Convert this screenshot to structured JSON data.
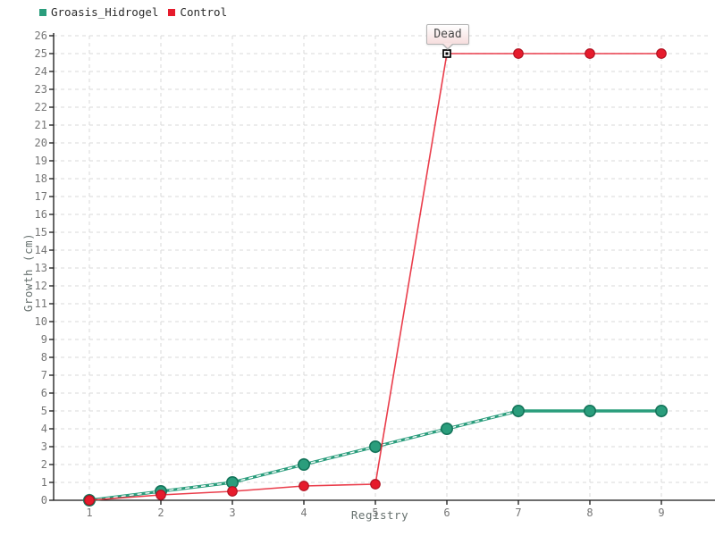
{
  "chart_data": {
    "type": "line",
    "x": [
      1,
      2,
      3,
      4,
      5,
      6,
      7,
      8,
      9
    ],
    "series": [
      {
        "name": "Groasis_Hidrogel",
        "color": "#2a9d7c",
        "marker_border": "#14745a",
        "values": [
          0,
          0.5,
          1,
          2,
          3,
          4,
          5,
          5,
          5
        ],
        "line_style": "thick-with-white-dash-overlay-until-x7"
      },
      {
        "name": "Control",
        "color": "#e61b2c",
        "marker_border": "#ad1120",
        "values": [
          0,
          0.3,
          0.5,
          0.8,
          0.9,
          25,
          25,
          25,
          25
        ],
        "line_style": "thin-solid"
      }
    ],
    "annotation": {
      "label": "Dead",
      "series": "Control",
      "x": 6,
      "y": 25,
      "marker": "white-square-black-border-black-dot"
    },
    "title": "",
    "xlabel": "Registry",
    "ylabel": "Growth (cm)",
    "xlim": [
      1,
      9
    ],
    "ylim": [
      0,
      26
    ],
    "y_tick_step": 1,
    "x_tick_step": 1,
    "grid": "dashed",
    "grid_color": "#dadada",
    "axis_color": "#161616",
    "tick_label_color": "#767676",
    "legend_position": "top-left"
  }
}
